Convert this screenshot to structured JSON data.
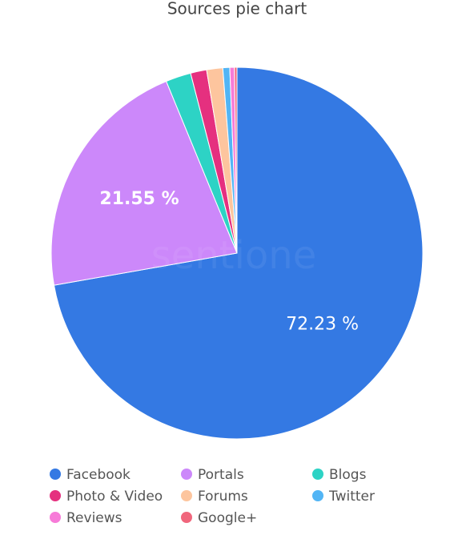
{
  "chart_data": {
    "type": "pie",
    "title": "Sources pie chart",
    "watermark": "sentione",
    "categories": [
      "Facebook",
      "Portals",
      "Blogs",
      "Photo & Video",
      "Forums",
      "Twitter",
      "Reviews",
      "Google+"
    ],
    "values": [
      72.23,
      21.55,
      2.2,
      1.4,
      1.4,
      0.6,
      0.4,
      0.22
    ],
    "value_labels": [
      "72.23 %",
      "21.55 %",
      null,
      null,
      null,
      null,
      null,
      null
    ],
    "colors": [
      "#3479e3",
      "#cc88fa",
      "#2dd3c5",
      "#e5307f",
      "#fdc59e",
      "#52b5f5",
      "#f77bd8",
      "#f0667c"
    ],
    "legend": "bottom"
  }
}
